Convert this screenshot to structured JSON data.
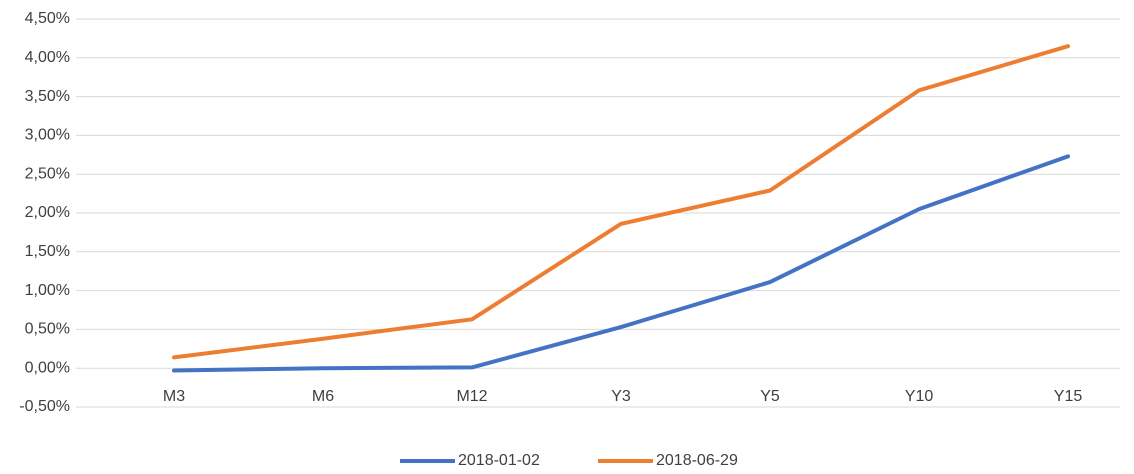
{
  "chart_data": {
    "type": "line",
    "categories": [
      "M3",
      "M6",
      "M12",
      "Y3",
      "Y5",
      "Y10",
      "Y15"
    ],
    "series": [
      {
        "name": "2018-01-02",
        "color": "#4472c4",
        "values": [
          -0.03,
          0.0,
          0.01,
          0.53,
          1.11,
          2.05,
          2.73
        ]
      },
      {
        "name": "2018-06-29",
        "color": "#ed7d31",
        "values": [
          0.14,
          0.38,
          0.63,
          1.86,
          2.29,
          3.58,
          4.15
        ]
      }
    ],
    "ylim": [
      -0.5,
      4.5
    ],
    "yticks": [
      {
        "value": -0.5,
        "label": "-0,50%"
      },
      {
        "value": 0,
        "label": "0,00%"
      },
      {
        "value": 0.5,
        "label": "0,50%"
      },
      {
        "value": 1,
        "label": "1,00%"
      },
      {
        "value": 1.5,
        "label": "1,50%"
      },
      {
        "value": 2,
        "label": "2,00%"
      },
      {
        "value": 2.5,
        "label": "2,50%"
      },
      {
        "value": 3,
        "label": "3,00%"
      },
      {
        "value": 3.5,
        "label": "3,50%"
      },
      {
        "value": 4,
        "label": "4,00%"
      },
      {
        "value": 4.5,
        "label": "4,50%"
      }
    ],
    "grid": true,
    "legend": "bottom"
  }
}
